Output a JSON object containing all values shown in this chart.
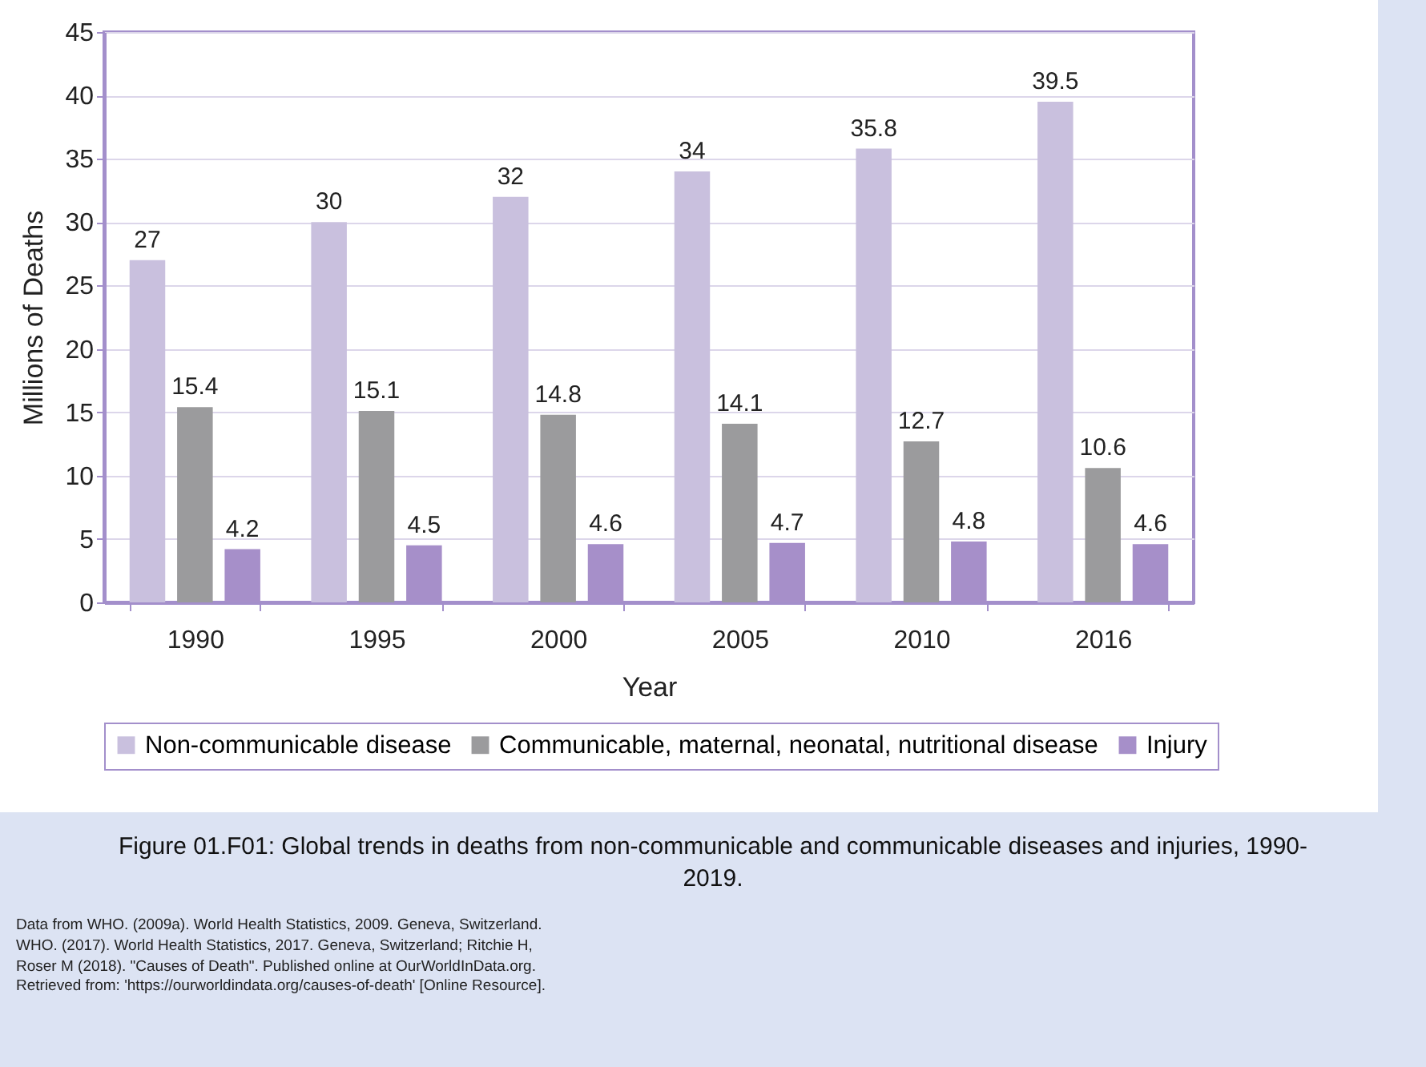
{
  "chart_data": {
    "type": "bar",
    "title": "Figure 01.F01: Global trends in deaths from non-communicable and communicable diseases and injuries, 1990-2019.",
    "xlabel": "Year",
    "ylabel": "Millions of Deaths",
    "categories": [
      "1990",
      "1995",
      "2000",
      "2005",
      "2010",
      "2016"
    ],
    "series": [
      {
        "name": "Non-communicable disease",
        "color": "#c9c0de",
        "values": [
          27,
          30,
          32,
          34,
          35.8,
          39.5
        ]
      },
      {
        "name": "Communicable, maternal, neonatal, nutritional disease",
        "color": "#9b9b9d",
        "values": [
          15.4,
          15.1,
          14.8,
          14.1,
          12.7,
          10.6
        ]
      },
      {
        "name": "Injury",
        "color": "#a68fc9",
        "values": [
          4.2,
          4.5,
          4.6,
          4.7,
          4.8,
          4.6
        ]
      }
    ],
    "ylim": [
      0,
      45
    ],
    "yticks": [
      0,
      5,
      10,
      15,
      20,
      25,
      30,
      35,
      40,
      45
    ],
    "grid": "y",
    "legend": "bottom",
    "data_labels": true,
    "annotations": [
      "Data from WHO. (2009a). World Health Statistics, 2009. Geneva, Switzerland.",
      "WHO. (2017). World Health Statistics, 2017. Geneva, Switzerland; Ritchie H, Roser M (2018).  \"Causes of Death\". Published online at OurWorldInData.org. Retrieved from: 'https://ourworldindata.org/causes-of-death' [Online Resource]."
    ]
  }
}
